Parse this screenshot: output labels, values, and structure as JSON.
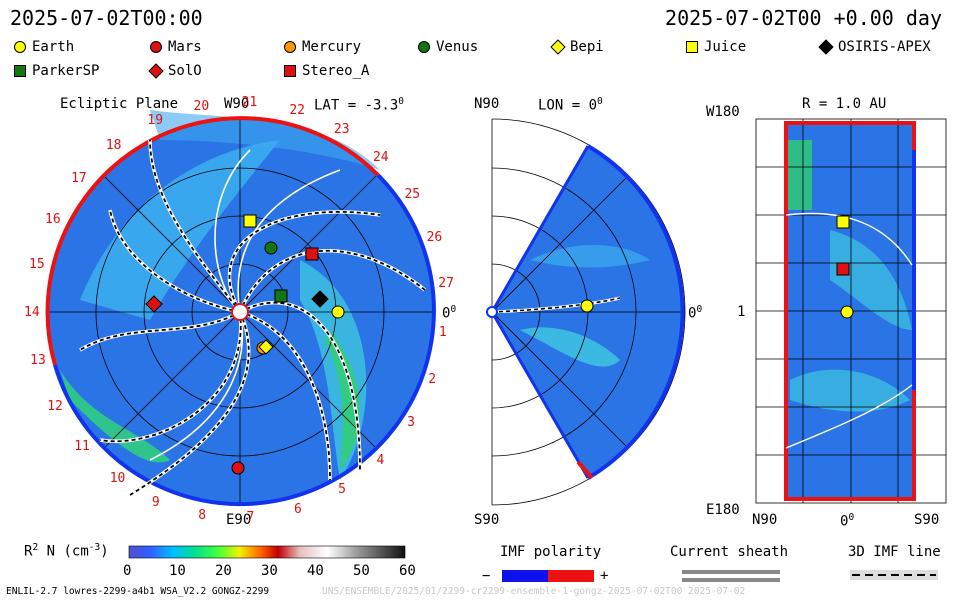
{
  "header": {
    "time_left": "2025-07-02T00:00",
    "time_right": "2025-07-02T00 +0.00 day"
  },
  "legend": [
    {
      "label": "Earth",
      "color": "#ffff00",
      "shape": "circle"
    },
    {
      "label": "Mars",
      "color": "#dd1111",
      "shape": "circle"
    },
    {
      "label": "Mercury",
      "color": "#ff9900",
      "shape": "circle"
    },
    {
      "label": "Venus",
      "color": "#117711",
      "shape": "circle"
    },
    {
      "label": "Bepi",
      "color": "#ffff00",
      "shape": "diamond"
    },
    {
      "label": "Juice",
      "color": "#ffff00",
      "shape": "square"
    },
    {
      "label": "OSIRIS-APEX",
      "color": "#000000",
      "shape": "diamond"
    },
    {
      "label": "ParkerSP",
      "color": "#117711",
      "shape": "square"
    },
    {
      "label": "SolO",
      "color": "#dd1111",
      "shape": "diamond"
    },
    {
      "label": "Stereo_A",
      "color": "#dd1111",
      "shape": "square"
    }
  ],
  "panels": {
    "ecliptic": {
      "title": "Ecliptic Plane",
      "lat": "LAT = -3.3",
      "deg": "0",
      "top": "W90",
      "bottom": "E90",
      "right": "0",
      "right_deg": "0"
    },
    "meridional": {
      "top": "N90",
      "title": "LON = 0",
      "deg": "0",
      "bottom": "S90",
      "right": "0",
      "right_deg": "0"
    },
    "radial": {
      "title": "R = 1.0 AU",
      "top": "W180",
      "mid": "1",
      "bottom": "E180",
      "x_left": "N90",
      "x_mid": "0",
      "x_mid_deg": "0",
      "x_right": "S90"
    }
  },
  "rotation_numbers": [
    "19",
    "20",
    "21",
    "22",
    "23",
    "24",
    "25",
    "26",
    "27",
    "1",
    "2",
    "3",
    "4",
    "5",
    "6",
    "7",
    "8",
    "9",
    "10",
    "11",
    "12",
    "13",
    "14",
    "15",
    "16",
    "17",
    "18"
  ],
  "colorbar": {
    "label": "R",
    "label_sup": "2",
    "label_rest": " N (cm",
    "label_sup2": "-3",
    "label_end": ")",
    "ticks": [
      "0",
      "10",
      "20",
      "30",
      "40",
      "50",
      "60"
    ]
  },
  "imf": {
    "title": "IMF polarity",
    "minus": "−",
    "plus": "+"
  },
  "sheath": {
    "title": "Current sheath"
  },
  "imf3d": {
    "title": "3D IMF line"
  },
  "footer": {
    "left": "ENLIL-2.7 lowres-2299-a4b1 WSA_V2.2 GONGZ-2299",
    "right": "UNS/ENSEMBLE/2025/01/2299-cr2299-ensemble-1-gongz-2025-07-02T00   2025-07-02"
  },
  "chart_data": {
    "type": "scatter",
    "title": "Ecliptic Plane",
    "colorbar_range": [
      0,
      60
    ],
    "bodies": [
      {
        "name": "Earth",
        "pos": "1 AU, 0"
      },
      {
        "name": "Mars"
      },
      {
        "name": "Mercury"
      },
      {
        "name": "Venus"
      },
      {
        "name": "Bepi"
      },
      {
        "name": "Juice"
      },
      {
        "name": "OSIRIS-APEX"
      },
      {
        "name": "ParkerSP"
      },
      {
        "name": "SolO"
      },
      {
        "name": "Stereo_A"
      }
    ]
  }
}
